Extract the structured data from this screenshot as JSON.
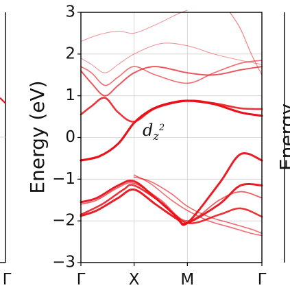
{
  "chart_data": {
    "type": "line",
    "title": "",
    "xlabel": "",
    "ylabel": "Energy (eV)",
    "x_ticks": [
      "Γ",
      "X",
      "M",
      "Γ"
    ],
    "x_tick_positions": [
      0,
      1,
      2,
      3.4
    ],
    "xlim": [
      0,
      3.4
    ],
    "ylim": [
      -3,
      3
    ],
    "y_ticks": [
      3,
      2,
      1,
      0,
      -1,
      -2,
      -3
    ],
    "y_tick_labels": [
      "3",
      "2",
      "1",
      "0",
      "−1",
      "−2",
      "−3"
    ],
    "grid": true,
    "line_color": "#e8121a",
    "annotation": {
      "base": "d",
      "sub": "z",
      "sup": "2",
      "x": 0.75,
      "y": 0.15
    },
    "left_panel": {
      "right_tick_label": "Γ",
      "visible_band_y": [
        0.95,
        0.82
      ]
    },
    "right_panel": {
      "ylabel_visible": "Energy"
    },
    "bands": [
      {
        "weight": 3.2,
        "x": [
          0,
          0.35,
          0.7,
          1.0,
          1.3,
          1.6,
          2.0,
          2.5,
          3.0,
          3.4
        ],
        "y": [
          -0.55,
          -0.45,
          -0.15,
          0.35,
          0.65,
          0.8,
          0.88,
          0.8,
          0.6,
          0.52
        ]
      },
      {
        "weight": 2.6,
        "x": [
          0,
          0.2,
          0.45,
          0.7,
          1.0,
          1.4,
          2.0,
          2.5,
          3.0,
          3.4
        ],
        "y": [
          0.55,
          0.75,
          0.95,
          0.6,
          0.38,
          0.7,
          0.88,
          0.82,
          0.7,
          0.68
        ]
      },
      {
        "weight": 3.0,
        "x": [
          0,
          0.3,
          0.7,
          1.0,
          1.4,
          1.8,
          2.0,
          2.6,
          3.0,
          3.4
        ],
        "y": [
          -1.55,
          -1.45,
          -1.15,
          -1.05,
          -1.45,
          -1.9,
          -2.05,
          -1.1,
          -0.4,
          -0.55
        ]
      },
      {
        "weight": 3.0,
        "x": [
          0,
          0.3,
          0.7,
          1.0,
          1.4,
          1.8,
          2.0,
          2.6,
          3.0,
          3.4
        ],
        "y": [
          -1.88,
          -1.75,
          -1.45,
          -1.25,
          -1.6,
          -1.95,
          -2.05,
          -1.6,
          -1.15,
          -1.15
        ]
      },
      {
        "weight": 2.6,
        "x": [
          0,
          0.4,
          0.8,
          1.0,
          1.5,
          2.0,
          2.6,
          3.0,
          3.4
        ],
        "y": [
          -1.85,
          -1.6,
          -1.25,
          -1.15,
          -1.55,
          -2.05,
          -1.85,
          -1.7,
          -1.9
        ]
      },
      {
        "weight": 1.8,
        "x": [
          0,
          0.3,
          0.7,
          1.0,
          1.5,
          2.0,
          2.6,
          3.0,
          3.4
        ],
        "y": [
          -1.6,
          -1.5,
          -1.2,
          -1.1,
          -1.5,
          -2.0,
          -1.5,
          -1.3,
          -1.45
        ]
      },
      {
        "weight": 1.6,
        "x": [
          1.0,
          1.3,
          1.7,
          2.0,
          2.4,
          2.8,
          3.2,
          3.4
        ],
        "y": [
          -0.9,
          -1.1,
          -1.5,
          -1.75,
          -2.0,
          -2.15,
          -2.3,
          -2.35
        ]
      },
      {
        "weight": 1.6,
        "x": [
          1.0,
          1.3,
          1.7,
          2.0,
          2.4,
          2.8,
          3.2,
          3.4
        ],
        "y": [
          -0.95,
          -1.05,
          -1.35,
          -1.65,
          -1.9,
          -2.05,
          -2.2,
          -2.3
        ]
      },
      {
        "weight": 2.0,
        "x": [
          0,
          0.2,
          0.45,
          0.7,
          1.0,
          1.4,
          2.0,
          2.5,
          3.0,
          3.4
        ],
        "y": [
          1.6,
          1.3,
          1.0,
          1.25,
          1.55,
          1.7,
          1.55,
          1.5,
          1.62,
          1.7
        ]
      },
      {
        "weight": 1.6,
        "x": [
          0,
          0.2,
          0.45,
          0.7,
          1.0,
          1.4,
          2.0,
          2.5,
          3.0,
          3.4
        ],
        "y": [
          1.7,
          1.55,
          1.25,
          1.45,
          1.7,
          1.5,
          1.3,
          1.55,
          1.78,
          1.85
        ]
      },
      {
        "weight": 1.0,
        "x": [
          0,
          0.2,
          0.45,
          0.7,
          1.0,
          1.5,
          2.0,
          2.5,
          3.0,
          3.4
        ],
        "y": [
          1.9,
          1.75,
          1.55,
          1.75,
          2.0,
          2.25,
          2.2,
          2.0,
          1.85,
          1.75
        ]
      },
      {
        "weight": 1.0,
        "x": [
          0,
          0.3,
          0.7,
          1.0,
          1.4,
          1.8,
          2.0
        ],
        "y": [
          2.3,
          2.45,
          2.55,
          2.5,
          2.7,
          2.95,
          3.05
        ]
      },
      {
        "weight": 1.2,
        "x": [
          2.8,
          3.0,
          3.2,
          3.4
        ],
        "y": [
          3.0,
          2.6,
          2.0,
          1.5
        ]
      }
    ]
  }
}
